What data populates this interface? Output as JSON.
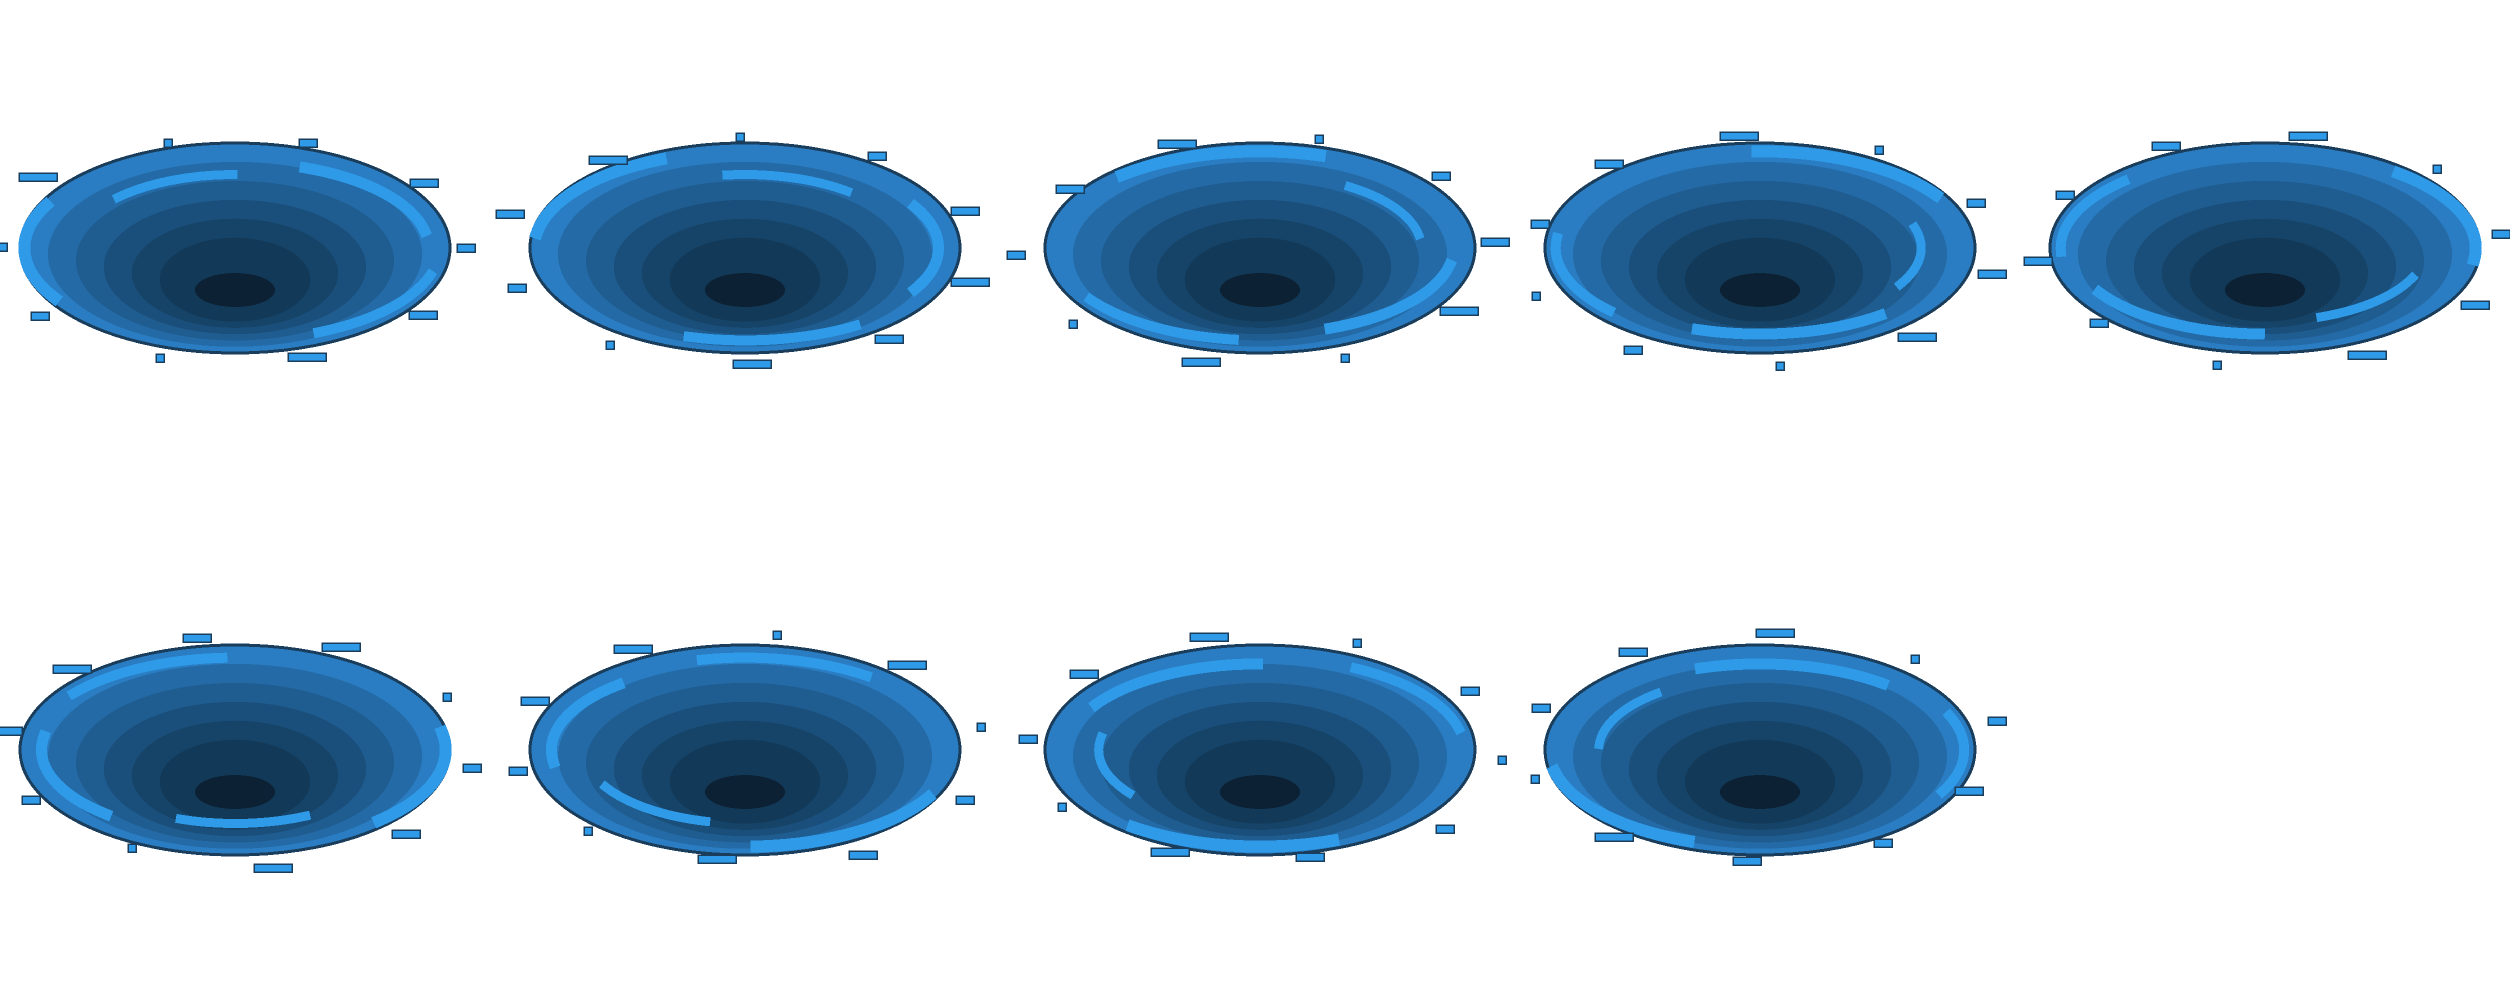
{
  "sprite_sheet": {
    "frame_count": 9,
    "grid": {
      "rows": 2,
      "columns": 5
    },
    "palette": {
      "outline": "#1a3d5c",
      "swirl_light": "#2e9ae8",
      "ring_1": "#2a7dc2",
      "ring_2": "#236aa6",
      "ring_3": "#1f5c8f",
      "ring_4": "#1a4f7c",
      "ring_5": "#164468",
      "ring_6": "#123a58",
      "core": "#0c2133"
    },
    "frames": [
      {
        "index": 1,
        "row": 1,
        "col": 1
      },
      {
        "index": 2,
        "row": 1,
        "col": 2
      },
      {
        "index": 3,
        "row": 1,
        "col": 3
      },
      {
        "index": 4,
        "row": 1,
        "col": 4
      },
      {
        "index": 5,
        "row": 1,
        "col": 5
      },
      {
        "index": 6,
        "row": 2,
        "col": 1
      },
      {
        "index": 7,
        "row": 2,
        "col": 2
      },
      {
        "index": 8,
        "row": 2,
        "col": 3
      },
      {
        "index": 9,
        "row": 2,
        "col": 4
      }
    ]
  }
}
